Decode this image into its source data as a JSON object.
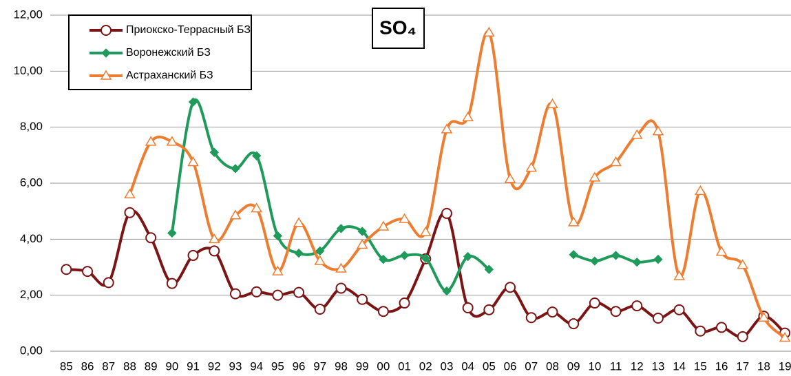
{
  "chart_data": {
    "type": "line",
    "title": "SO₄",
    "categories": [
      "85",
      "86",
      "87",
      "88",
      "89",
      "90",
      "91",
      "92",
      "93",
      "94",
      "95",
      "96",
      "97",
      "98",
      "99",
      "00",
      "01",
      "02",
      "03",
      "04",
      "05",
      "06",
      "07",
      "08",
      "09",
      "10",
      "11",
      "12",
      "13",
      "14",
      "15",
      "16",
      "17",
      "18",
      "19"
    ],
    "series": [
      {
        "name": "Приокско-Террасный БЗ",
        "color": "#7b1414",
        "marker": "circle",
        "values": [
          2.92,
          2.85,
          2.45,
          4.95,
          4.05,
          2.42,
          3.42,
          3.58,
          2.05,
          2.12,
          2.0,
          2.1,
          1.5,
          2.25,
          1.85,
          1.42,
          1.72,
          3.3,
          4.92,
          1.55,
          1.48,
          2.28,
          1.2,
          1.4,
          0.98,
          1.72,
          1.42,
          1.62,
          1.18,
          1.48,
          0.72,
          0.85,
          0.52,
          1.25,
          0.65
        ]
      },
      {
        "name": "Воронежский БЗ",
        "color": "#1e9a5a",
        "marker": "diamond",
        "values": [
          null,
          null,
          null,
          null,
          null,
          4.22,
          8.9,
          7.1,
          6.52,
          6.98,
          4.12,
          3.5,
          3.58,
          4.38,
          4.28,
          3.28,
          3.42,
          3.32,
          2.15,
          3.38,
          2.92,
          null,
          null,
          null,
          3.45,
          3.22,
          3.42,
          3.18,
          3.28,
          null,
          null,
          null,
          null,
          null,
          null
        ]
      },
      {
        "name": "Астраханский БЗ",
        "color": "#ed7d31",
        "marker": "triangle",
        "values": [
          null,
          null,
          null,
          5.6,
          7.48,
          7.48,
          6.75,
          4.0,
          4.85,
          5.1,
          2.85,
          4.58,
          3.22,
          2.95,
          3.8,
          4.45,
          4.72,
          4.25,
          7.92,
          8.35,
          11.38,
          6.15,
          6.55,
          8.82,
          4.6,
          6.2,
          6.75,
          7.72,
          7.85,
          2.68,
          5.72,
          3.55,
          3.08,
          1.2,
          0.48
        ]
      }
    ],
    "ylim": [
      0,
      12
    ],
    "yticks": [
      {
        "value": 0,
        "label": "0,00"
      },
      {
        "value": 2,
        "label": "2,00"
      },
      {
        "value": 4,
        "label": "4,00"
      },
      {
        "value": 6,
        "label": "6,00"
      },
      {
        "value": 8,
        "label": "8,00"
      },
      {
        "value": 10,
        "label": "10,00"
      },
      {
        "value": 12,
        "label": "12,00"
      }
    ],
    "grid": true,
    "smooth": true,
    "legend": "upper left"
  }
}
